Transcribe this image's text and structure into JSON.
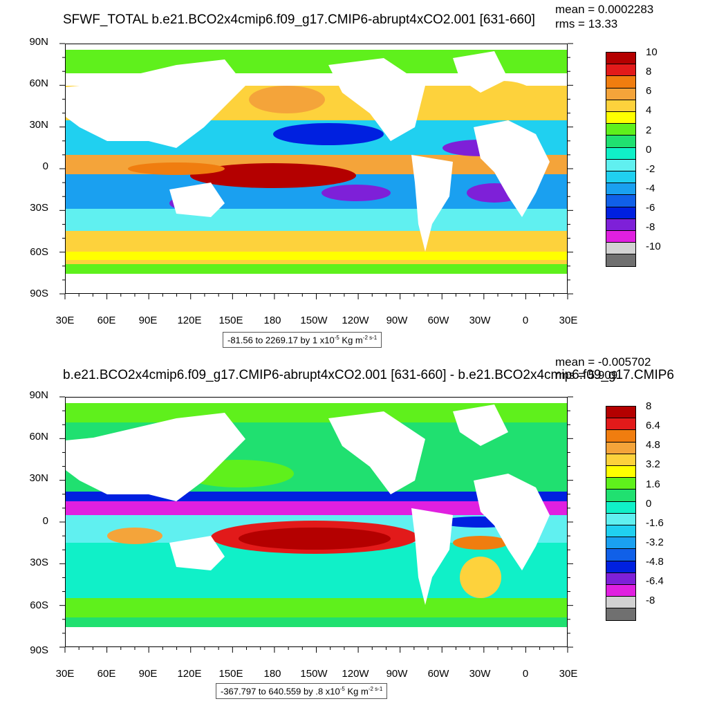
{
  "panels": [
    {
      "title": "SFWF_TOTAL b.e21.BCO2x4cmip6.f09_g17.CMIP6-abrupt4xCO2.001 [631-660]",
      "mean": "mean = 0.0002283",
      "rms": "rms = 13.33",
      "ylabels": [
        "90N",
        "60N",
        "30N",
        "0",
        "30S",
        "60S",
        "90S"
      ],
      "xlabels": [
        "30E",
        "60E",
        "90E",
        "120E",
        "150E",
        "180",
        "150W",
        "120W",
        "90W",
        "60W",
        "30W",
        "0",
        "30E"
      ],
      "range_note": "-81.56 to 2269.17 by 1 x10",
      "range_exp": "-5",
      "range_units": " Kg m",
      "range_unit_exp": "-2 s-1",
      "colorbar_labels": [
        "10",
        "8",
        "6",
        "4",
        "2",
        "0",
        "-2",
        "-4",
        "-6",
        "-8",
        "-10"
      ],
      "colorbar_colors": [
        "#b40000",
        "#e21a1a",
        "#f07d0f",
        "#f4a43a",
        "#fdd23c",
        "#ffff00",
        "#5ff01c",
        "#20e070",
        "#10f0c8",
        "#60f0f0",
        "#20d0f0",
        "#1aa0f0",
        "#1060e8",
        "#0020e0",
        "#7e20d8",
        "#e020e0",
        "#d2d2d2",
        "#707070"
      ]
    },
    {
      "title": "b.e21.BCO2x4cmip6.f09_g17.CMIP6-abrupt4xCO2.001 [631-660] - b.e21.BCO2x4cmip6.f09_g17.CMIP6",
      "mean": "mean = -0.005702",
      "rms": "rms = 5.909",
      "ylabels": [
        "90N",
        "60N",
        "30N",
        "0",
        "30S",
        "60S",
        "90S"
      ],
      "xlabels": [
        "30E",
        "60E",
        "90E",
        "120E",
        "150E",
        "180",
        "150W",
        "120W",
        "90W",
        "60W",
        "30W",
        "0",
        "30E"
      ],
      "range_note": "-367.797 to 640.559 by .8 x10",
      "range_exp": "-5",
      "range_units": " Kg m",
      "range_unit_exp": "-2 s-1",
      "colorbar_labels": [
        "8",
        "6.4",
        "4.8",
        "3.2",
        "1.6",
        "0",
        "-1.6",
        "-3.2",
        "-4.8",
        "-6.4",
        "-8"
      ],
      "colorbar_colors": [
        "#b40000",
        "#e21a1a",
        "#f07d0f",
        "#f4a43a",
        "#fdd23c",
        "#ffff00",
        "#5ff01c",
        "#20e070",
        "#10f0c8",
        "#60f0f0",
        "#20d0f0",
        "#1aa0f0",
        "#1060e8",
        "#0020e0",
        "#7e20d8",
        "#e020e0",
        "#d2d2d2",
        "#707070"
      ]
    }
  ]
}
